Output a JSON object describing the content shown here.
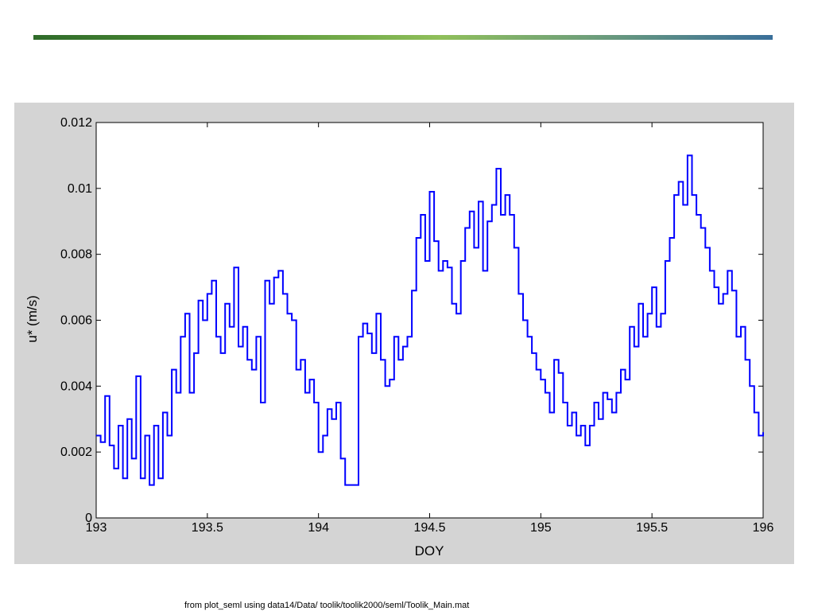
{
  "footnote": "from  plot_seml using data14/Data/ toolik/toolik2000/seml/Toolik_Main.mat",
  "colors": {
    "line": "#0000ff",
    "panel": "#d4d4d4",
    "axes_bg": "#ffffff"
  },
  "chart_data": {
    "type": "line",
    "title": "",
    "xlabel": "DOY",
    "ylabel": "u* (m/s)",
    "xlim": [
      193,
      196
    ],
    "ylim": [
      0,
      0.012
    ],
    "xticks": [
      "193",
      "193.5",
      "194",
      "194.5",
      "195",
      "195.5",
      "196"
    ],
    "yticks": [
      "0",
      "0.002",
      "0.004",
      "0.006",
      "0.008",
      "0.01",
      "0.012"
    ],
    "grid": false,
    "series": [
      {
        "values_x": [
          193.0,
          193.02,
          193.04,
          193.06,
          193.08,
          193.1,
          193.12,
          193.14,
          193.16,
          193.18,
          193.2,
          193.22,
          193.24,
          193.26,
          193.28,
          193.3,
          193.32,
          193.34,
          193.36,
          193.38,
          193.4,
          193.42,
          193.44,
          193.46,
          193.48,
          193.5,
          193.52,
          193.54,
          193.56,
          193.58,
          193.6,
          193.62,
          193.64,
          193.66,
          193.68,
          193.7,
          193.72,
          193.74,
          193.76,
          193.78,
          193.8,
          193.82,
          193.84,
          193.86,
          193.88,
          193.9,
          193.92,
          193.94,
          193.96,
          193.98,
          194.0,
          194.02,
          194.04,
          194.06,
          194.08,
          194.1,
          194.12,
          194.14,
          194.16,
          194.18,
          194.2,
          194.22,
          194.24,
          194.26,
          194.28,
          194.3,
          194.32,
          194.34,
          194.36,
          194.38,
          194.4,
          194.42,
          194.44,
          194.46,
          194.48,
          194.5,
          194.52,
          194.54,
          194.56,
          194.58,
          194.6,
          194.62,
          194.64,
          194.66,
          194.68,
          194.7,
          194.72,
          194.74,
          194.76,
          194.78,
          194.8,
          194.82,
          194.84,
          194.86,
          194.88,
          194.9,
          194.92,
          194.94,
          194.96,
          194.98,
          195.0,
          195.02,
          195.04,
          195.06,
          195.08,
          195.1,
          195.12,
          195.14,
          195.16,
          195.18,
          195.2,
          195.22,
          195.24,
          195.26,
          195.28,
          195.3,
          195.32,
          195.34,
          195.36,
          195.38,
          195.4,
          195.42,
          195.44,
          195.46,
          195.48,
          195.5,
          195.52,
          195.54,
          195.56,
          195.58,
          195.6,
          195.62,
          195.64,
          195.66,
          195.68,
          195.7,
          195.72,
          195.74,
          195.76,
          195.78,
          195.8,
          195.82,
          195.84,
          195.86,
          195.88,
          195.9,
          195.92,
          195.94,
          195.96,
          195.98,
          196.0
        ],
        "values_y": [
          0.0025,
          0.0023,
          0.0037,
          0.0022,
          0.0015,
          0.0028,
          0.0012,
          0.003,
          0.0018,
          0.0043,
          0.0012,
          0.0025,
          0.001,
          0.0028,
          0.0012,
          0.0032,
          0.0025,
          0.0045,
          0.0038,
          0.0055,
          0.0062,
          0.0038,
          0.005,
          0.0066,
          0.006,
          0.0068,
          0.0072,
          0.0055,
          0.005,
          0.0065,
          0.0058,
          0.0076,
          0.0052,
          0.0058,
          0.0048,
          0.0045,
          0.0055,
          0.0035,
          0.0072,
          0.0065,
          0.0073,
          0.0075,
          0.0068,
          0.0062,
          0.006,
          0.0045,
          0.0048,
          0.0038,
          0.0042,
          0.0035,
          0.002,
          0.0025,
          0.0033,
          0.003,
          0.0035,
          0.0018,
          0.001,
          0.001,
          0.001,
          0.0055,
          0.0059,
          0.0056,
          0.005,
          0.0062,
          0.0048,
          0.004,
          0.0042,
          0.0055,
          0.0048,
          0.0052,
          0.0055,
          0.0069,
          0.0085,
          0.0092,
          0.0078,
          0.0099,
          0.0084,
          0.0075,
          0.0078,
          0.0076,
          0.0065,
          0.0062,
          0.0078,
          0.0088,
          0.0093,
          0.0082,
          0.0096,
          0.0075,
          0.009,
          0.0095,
          0.0106,
          0.0092,
          0.0098,
          0.0092,
          0.0082,
          0.0068,
          0.006,
          0.0055,
          0.005,
          0.0045,
          0.0042,
          0.0038,
          0.0032,
          0.0048,
          0.0044,
          0.0035,
          0.0028,
          0.0032,
          0.0025,
          0.0028,
          0.0022,
          0.0028,
          0.0035,
          0.003,
          0.0038,
          0.0036,
          0.0032,
          0.0038,
          0.0045,
          0.0042,
          0.0058,
          0.0052,
          0.0065,
          0.0055,
          0.0062,
          0.007,
          0.0058,
          0.0062,
          0.0078,
          0.0085,
          0.0098,
          0.0102,
          0.0095,
          0.011,
          0.0098,
          0.0092,
          0.0088,
          0.0082,
          0.0075,
          0.007,
          0.0065,
          0.0068,
          0.0075,
          0.0069,
          0.0055,
          0.0058,
          0.0048,
          0.004,
          0.0032,
          0.0025,
          0.0026
        ]
      }
    ]
  }
}
